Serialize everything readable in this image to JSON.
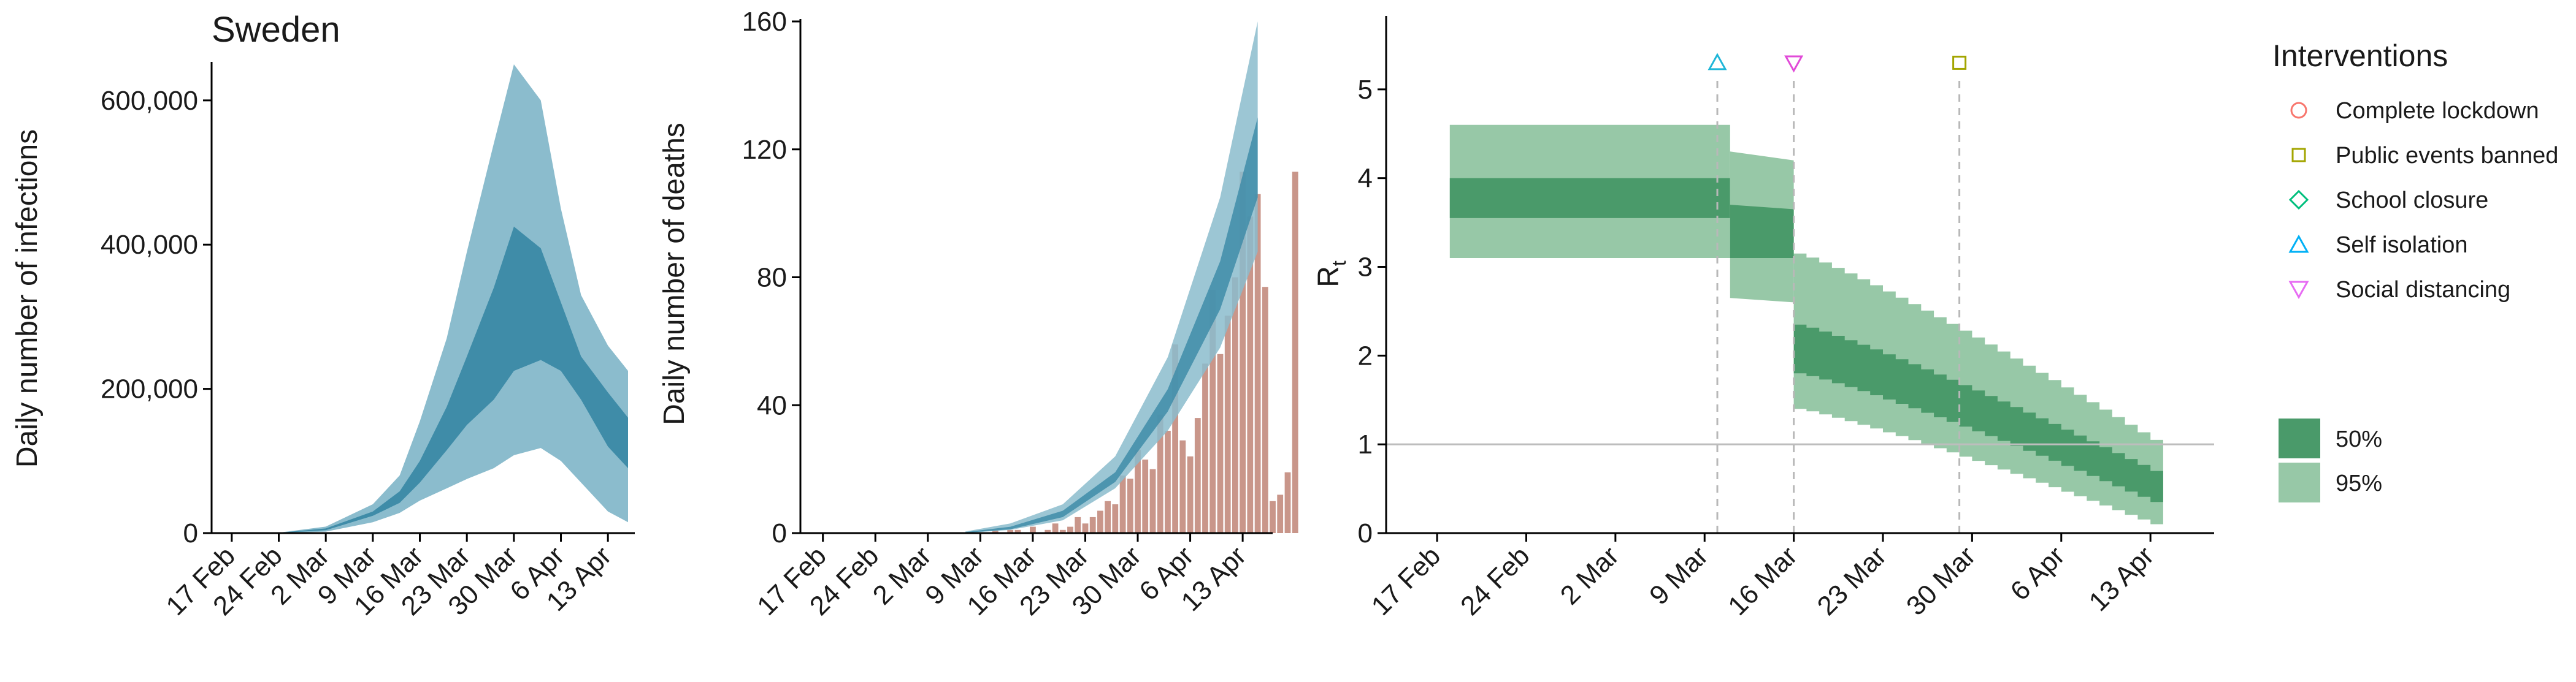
{
  "chart_data": [
    {
      "type": "area",
      "title": "Sweden",
      "ylabel": "Daily number of infections",
      "xlabel": "",
      "x_tick_labels": [
        "17 Feb",
        "24 Feb",
        "2 Mar",
        "9 Mar",
        "16 Mar",
        "23 Mar",
        "30 Mar",
        "6 Apr",
        "13 Apr"
      ],
      "y_tick_labels": [
        "0",
        "200,000",
        "400,000",
        "600,000"
      ],
      "ylim": [
        0,
        650000
      ],
      "x_dates": [
        "2020-02-15",
        "2020-02-24",
        "2020-03-02",
        "2020-03-09",
        "2020-03-13",
        "2020-03-16",
        "2020-03-20",
        "2020-03-23",
        "2020-03-27",
        "2020-03-30",
        "2020-04-03",
        "2020-04-06",
        "2020-04-09",
        "2020-04-13",
        "2020-04-16"
      ],
      "series": [
        {
          "band": "95%",
          "lower": [
            0,
            100,
            2000,
            15000,
            28000,
            45000,
            62000,
            75000,
            90000,
            108000,
            118000,
            100000,
            70000,
            30000,
            15000
          ],
          "upper": [
            0,
            600,
            9000,
            40000,
            80000,
            155000,
            270000,
            390000,
            540000,
            650000,
            600000,
            450000,
            330000,
            260000,
            225000
          ]
        },
        {
          "band": "50%",
          "lower": [
            0,
            200,
            4000,
            24000,
            42000,
            70000,
            115000,
            150000,
            185000,
            225000,
            240000,
            225000,
            185000,
            120000,
            90000
          ],
          "upper": [
            0,
            400,
            6500,
            30000,
            58000,
            100000,
            175000,
            245000,
            340000,
            425000,
            395000,
            320000,
            245000,
            195000,
            160000
          ]
        }
      ],
      "colors": {
        "band95": "#8bbccd",
        "band50": "#3f8ca8"
      }
    },
    {
      "type": "bar",
      "title": "",
      "ylabel": "Daily number of deaths",
      "xlabel": "",
      "x_tick_labels": [
        "17 Feb",
        "24 Feb",
        "2 Mar",
        "9 Mar",
        "16 Mar",
        "23 Mar",
        "30 Mar",
        "6 Apr",
        "13 Apr"
      ],
      "y_tick_labels": [
        "0",
        "40",
        "80",
        "120",
        "160"
      ],
      "ylim": [
        0,
        160
      ],
      "bars": {
        "start_date": "2020-03-11",
        "values": [
          1,
          0,
          1,
          1,
          0,
          2,
          0,
          1,
          3,
          1,
          2,
          5,
          3,
          5,
          7,
          10,
          9,
          18,
          17,
          26,
          23,
          20,
          37,
          32,
          59,
          29,
          24,
          36,
          53,
          76,
          56,
          68,
          80,
          113,
          99,
          106,
          77,
          10,
          12,
          19,
          113
        ]
      },
      "model_band": {
        "x_dates": [
          "2020-03-07",
          "2020-03-13",
          "2020-03-20",
          "2020-03-27",
          "2020-04-03",
          "2020-04-10",
          "2020-04-15"
        ],
        "upper95": [
          0.5,
          3,
          9,
          24,
          55,
          105,
          160
        ],
        "lower95": [
          0,
          1,
          4,
          14,
          32,
          58,
          88
        ],
        "upper50": [
          0.3,
          2,
          7,
          19,
          45,
          85,
          130
        ],
        "lower50": [
          0.1,
          1.2,
          5,
          16,
          38,
          70,
          105
        ]
      },
      "colors": {
        "bars": "#c9968a",
        "band95": "#8bbccd",
        "band50": "#3f8ca8"
      }
    },
    {
      "type": "step",
      "title": "",
      "ylabel": "R",
      "ylabel_subscript": "t",
      "xlabel": "",
      "x_tick_labels": [
        "17 Feb",
        "24 Feb",
        "2 Mar",
        "9 Mar",
        "16 Mar",
        "23 Mar",
        "30 Mar",
        "6 Apr",
        "13 Apr"
      ],
      "y_tick_labels": [
        "0",
        "1",
        "2",
        "3",
        "4",
        "5"
      ],
      "ylim": [
        0,
        5.8
      ],
      "reference_line": 1,
      "segments": [
        {
          "start": "2020-02-18",
          "end": "2020-03-11",
          "l95": [
            3.1,
            3.1
          ],
          "u95": [
            4.6,
            4.6
          ],
          "l50": [
            3.55,
            3.55
          ],
          "u50": [
            4.0,
            4.0
          ]
        },
        {
          "start": "2020-03-11",
          "end": "2020-03-16",
          "l95": [
            2.65,
            2.6
          ],
          "u95": [
            4.3,
            4.2
          ],
          "l50": [
            3.1,
            3.1
          ],
          "u50": [
            3.7,
            3.65
          ]
        },
        {
          "start": "2020-03-16",
          "end": "2020-04-14",
          "profile": "declining",
          "l95_start": 1.4,
          "l95_end": 0.1,
          "u95_start": 3.15,
          "u95_end": 1.05,
          "l50_start": 1.8,
          "l50_end": 0.35,
          "u50_start": 2.35,
          "u50_end": 0.7
        }
      ],
      "interventions": [
        {
          "name": "Self isolation",
          "date": "2020-03-10",
          "marker": "triangle-up",
          "color": "#1fb6d8"
        },
        {
          "name": "Social distancing",
          "date": "2020-03-16",
          "marker": "triangle-down",
          "color": "#e14bd8"
        },
        {
          "name": "Public events banned",
          "date": "2020-03-29",
          "marker": "square",
          "color": "#a3a500"
        }
      ],
      "legend": {
        "title": "Interventions",
        "items": [
          {
            "label": "Complete lockdown",
            "marker": "circle",
            "color": "#f8766d"
          },
          {
            "label": "Public events banned",
            "marker": "square",
            "color": "#a3a500"
          },
          {
            "label": "School closure",
            "marker": "diamond",
            "color": "#00bf7d"
          },
          {
            "label": "Self isolation",
            "marker": "triangle-up",
            "color": "#00b0f6"
          },
          {
            "label": "Social distancing",
            "marker": "triangle-down",
            "color": "#e76bf3"
          }
        ],
        "bands": [
          {
            "label": "50%",
            "color": "#4a9a6a"
          },
          {
            "label": "95%",
            "color": "#97c8a7"
          }
        ]
      },
      "colors": {
        "band95": "#97c8a7",
        "band50": "#4a9a6a",
        "vline": "#b8b8b8",
        "refline": "#bdbdbd"
      }
    }
  ]
}
